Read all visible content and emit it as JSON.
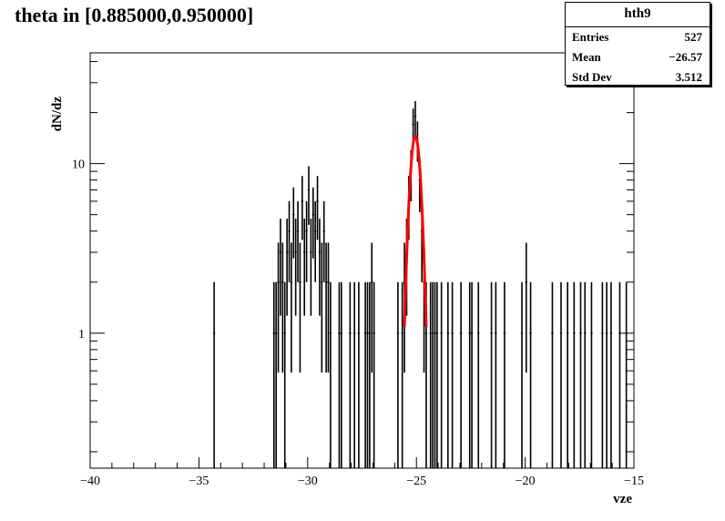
{
  "chart_data": {
    "type": "bar",
    "title": "theta in [0.885000,0.950000]",
    "xlabel": "vze",
    "ylabel": "dN/dz",
    "xlim": [
      -40,
      -15
    ],
    "ylim": [
      0.16,
      45
    ],
    "yscale": "log",
    "grid": false,
    "x_ticks": [
      -40,
      -35,
      -30,
      -25,
      -20,
      -15
    ],
    "x_tick_labels": [
      "−40",
      "−35",
      "−30",
      "−25",
      "−20",
      "−15"
    ],
    "y_ticks": [
      1,
      10
    ],
    "y_tick_labels": [
      "1",
      "10"
    ],
    "bins": [
      {
        "x": -34.3,
        "y": 1
      },
      {
        "x": -31.55,
        "y": 1
      },
      {
        "x": -31.45,
        "y": 1
      },
      {
        "x": -31.35,
        "y": 2
      },
      {
        "x": -31.25,
        "y": 3
      },
      {
        "x": -31.15,
        "y": 2
      },
      {
        "x": -31.05,
        "y": 1
      },
      {
        "x": -30.95,
        "y": 3
      },
      {
        "x": -30.85,
        "y": 4
      },
      {
        "x": -30.75,
        "y": 2
      },
      {
        "x": -30.65,
        "y": 5
      },
      {
        "x": -30.55,
        "y": 3
      },
      {
        "x": -30.45,
        "y": 4
      },
      {
        "x": -30.35,
        "y": 2
      },
      {
        "x": -30.25,
        "y": 6
      },
      {
        "x": -30.15,
        "y": 3
      },
      {
        "x": -30.05,
        "y": 4
      },
      {
        "x": -29.95,
        "y": 7
      },
      {
        "x": -29.85,
        "y": 3
      },
      {
        "x": -29.75,
        "y": 5
      },
      {
        "x": -29.65,
        "y": 4
      },
      {
        "x": -29.55,
        "y": 6
      },
      {
        "x": -29.45,
        "y": 3
      },
      {
        "x": -29.35,
        "y": 2
      },
      {
        "x": -29.25,
        "y": 4
      },
      {
        "x": -29.15,
        "y": 2
      },
      {
        "x": -29.05,
        "y": 2
      },
      {
        "x": -28.95,
        "y": 1
      },
      {
        "x": -28.55,
        "y": 1
      },
      {
        "x": -28.45,
        "y": 1
      },
      {
        "x": -28.05,
        "y": 1
      },
      {
        "x": -27.85,
        "y": 1
      },
      {
        "x": -27.65,
        "y": 1
      },
      {
        "x": -27.35,
        "y": 1
      },
      {
        "x": -27.25,
        "y": 1
      },
      {
        "x": -27.15,
        "y": 1
      },
      {
        "x": -27.05,
        "y": 2
      },
      {
        "x": -26.95,
        "y": 1
      },
      {
        "x": -25.85,
        "y": 1
      },
      {
        "x": -25.65,
        "y": 1
      },
      {
        "x": -25.55,
        "y": 2
      },
      {
        "x": -25.45,
        "y": 3
      },
      {
        "x": -25.35,
        "y": 6
      },
      {
        "x": -25.25,
        "y": 9
      },
      {
        "x": -25.15,
        "y": 17
      },
      {
        "x": -25.05,
        "y": 19
      },
      {
        "x": -24.95,
        "y": 14
      },
      {
        "x": -24.85,
        "y": 8
      },
      {
        "x": -24.75,
        "y": 4
      },
      {
        "x": -24.65,
        "y": 2
      },
      {
        "x": -24.55,
        "y": 1
      },
      {
        "x": -24.35,
        "y": 1
      },
      {
        "x": -24.25,
        "y": 1
      },
      {
        "x": -24.15,
        "y": 1
      },
      {
        "x": -24.05,
        "y": 1
      },
      {
        "x": -23.85,
        "y": 1
      },
      {
        "x": -23.55,
        "y": 1
      },
      {
        "x": -23.35,
        "y": 1
      },
      {
        "x": -22.95,
        "y": 1
      },
      {
        "x": -22.55,
        "y": 1
      },
      {
        "x": -22.45,
        "y": 1
      },
      {
        "x": -22.15,
        "y": 1
      },
      {
        "x": -21.55,
        "y": 1
      },
      {
        "x": -21.35,
        "y": 1
      },
      {
        "x": -20.95,
        "y": 1
      },
      {
        "x": -20.15,
        "y": 1
      },
      {
        "x": -19.95,
        "y": 2
      },
      {
        "x": -19.75,
        "y": 1
      },
      {
        "x": -18.75,
        "y": 1
      },
      {
        "x": -18.35,
        "y": 1
      },
      {
        "x": -18.05,
        "y": 1
      },
      {
        "x": -17.75,
        "y": 1
      },
      {
        "x": -17.45,
        "y": 1
      },
      {
        "x": -17.25,
        "y": 1
      },
      {
        "x": -16.95,
        "y": 1
      },
      {
        "x": -16.45,
        "y": 1
      },
      {
        "x": -16.25,
        "y": 1
      },
      {
        "x": -16.05,
        "y": 1
      },
      {
        "x": -15.65,
        "y": 1
      },
      {
        "x": -15.35,
        "y": 1
      }
    ],
    "fit": {
      "type": "gaussian",
      "constant": 14.5,
      "mean": -25.05,
      "sigma": 0.22,
      "range": [
        -25.55,
        -24.55
      ],
      "color": "#ff0000"
    },
    "stats": {
      "name": "hth9",
      "rows": [
        {
          "label": "Entries",
          "value": "527"
        },
        {
          "label": "Mean",
          "value": "−26.57"
        },
        {
          "label": "Std Dev",
          "value": "3.512"
        }
      ]
    }
  }
}
